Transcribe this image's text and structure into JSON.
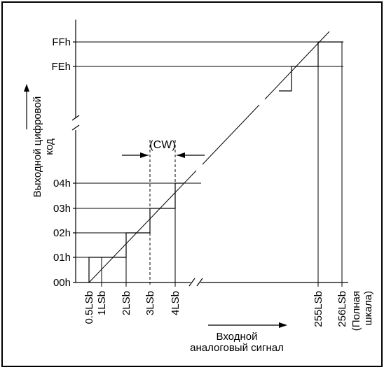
{
  "diagram": {
    "y_title": "Выходной цифровой код",
    "y_title_line1": "Выходной цифровой",
    "y_title_line2": "код",
    "x_title_line1": "Входной",
    "x_title_line2": "аналоговый сигнал",
    "cw_label": "(CW)",
    "y_codes": [
      "00h",
      "01h",
      "02h",
      "03h",
      "04h",
      "FEh",
      "FFh"
    ],
    "x_labels": [
      "0.5LSb",
      "1LSb",
      "2LSb",
      "3LSb",
      "4LSb",
      "255LSb",
      "256LSb"
    ],
    "full_scale_label_line1": "(Полная",
    "full_scale_label_line2": "шкала)"
  }
}
